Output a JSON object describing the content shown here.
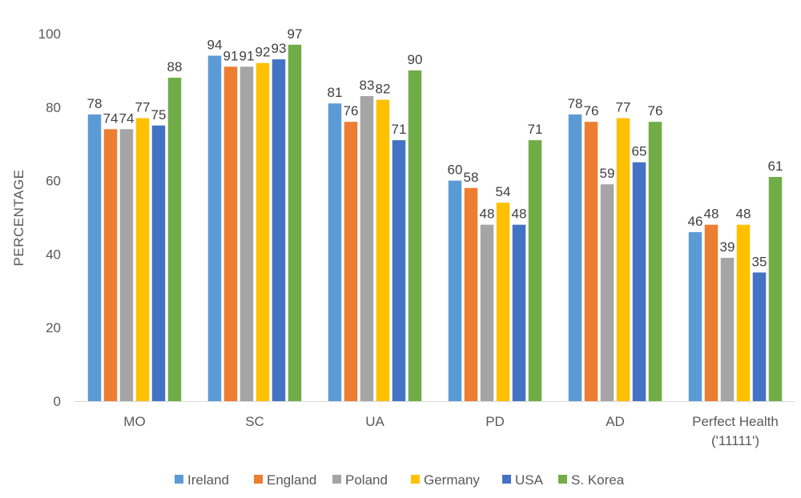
{
  "chart_data": {
    "type": "bar",
    "ylabel": "PERCENTAGE",
    "xlabel": "",
    "ylim": [
      0,
      100
    ],
    "yticks": [
      0,
      20,
      40,
      60,
      80,
      100
    ],
    "grid": false,
    "legend_position": "bottom",
    "categories": [
      [
        "MO"
      ],
      [
        "SC"
      ],
      [
        "UA"
      ],
      [
        "PD"
      ],
      [
        "AD"
      ],
      [
        "Perfect Health",
        "('11111')"
      ]
    ],
    "series": [
      {
        "name": "Ireland",
        "color": "#5b9bd5",
        "values": [
          78,
          94,
          81,
          60,
          78,
          46
        ]
      },
      {
        "name": "England",
        "color": "#ed7d31",
        "values": [
          74,
          91,
          76,
          58,
          76,
          48
        ]
      },
      {
        "name": "Poland",
        "color": "#a5a5a5",
        "values": [
          74,
          91,
          83,
          48,
          59,
          39
        ]
      },
      {
        "name": "Germany",
        "color": "#ffc000",
        "values": [
          77,
          92,
          82,
          54,
          77,
          48
        ]
      },
      {
        "name": "USA",
        "color": "#4472c4",
        "values": [
          75,
          93,
          71,
          48,
          65,
          35
        ]
      },
      {
        "name": "S. Korea",
        "color": "#70ad47",
        "values": [
          88,
          97,
          90,
          71,
          76,
          61
        ]
      }
    ]
  }
}
